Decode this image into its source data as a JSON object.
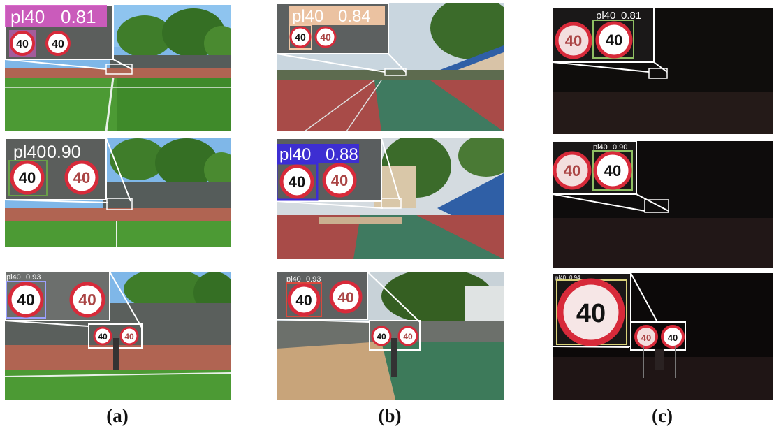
{
  "colors": {
    "sign_ring": "#d72a3a",
    "inset_border": "#ffffff",
    "det_pink": "#d65bc5",
    "det_beige": "#f2c7a4",
    "det_green": "#8fbf63",
    "det_blue": "#3c2bd8",
    "det_red": "#d84a3d",
    "det_light_blue": "#9aa0ff"
  },
  "columns": [
    {
      "label": "(a)",
      "panels": [
        {
          "class": "pl40",
          "score": "0.81",
          "sign": "40",
          "det_color": "#d65bc5",
          "scene": "day-field",
          "sign_number": "40"
        },
        {
          "class": "pl40",
          "score": "0.90",
          "sign": "40",
          "det_color": "#6aa048",
          "scene": "day-field",
          "sign_number": "40"
        },
        {
          "class": "pl40",
          "score": "0.93",
          "sign": "40",
          "det_color": "#9aa0ff",
          "scene": "day-field-close",
          "sign_number": "40"
        }
      ]
    },
    {
      "label": "(b)",
      "panels": [
        {
          "class": "pl40",
          "score": "0.84",
          "sign": "40",
          "det_color": "#f2c7a4",
          "scene": "day-track",
          "sign_number": "40"
        },
        {
          "class": "pl40",
          "score": "0.88",
          "sign": "40",
          "det_color": "#3c2bd8",
          "scene": "day-track",
          "sign_number": "40"
        },
        {
          "class": "pl40",
          "score": "0.93",
          "sign": "40",
          "det_color": "#d84a3d",
          "scene": "day-track-close",
          "sign_number": "40"
        }
      ]
    },
    {
      "label": "(c)",
      "panels": [
        {
          "class": "pl40",
          "score": "0.81",
          "sign": "40",
          "det_color": "#8fbf63",
          "scene": "night",
          "sign_number": "40"
        },
        {
          "class": "pl40",
          "score": "0.90",
          "sign": "40",
          "det_color": "#8fbf63",
          "scene": "night",
          "sign_number": "40"
        },
        {
          "class": "pl40",
          "score": "0.94",
          "sign": "40",
          "det_color": "#d9d27a",
          "scene": "night-close",
          "sign_number": "40"
        }
      ]
    }
  ]
}
